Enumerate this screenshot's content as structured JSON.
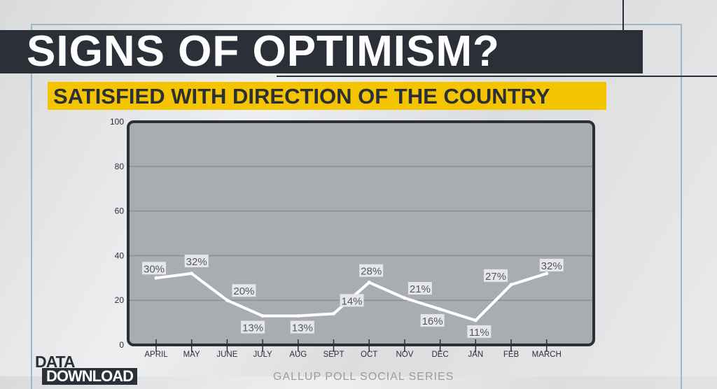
{
  "title": "SIGNS OF OPTIMISM?",
  "subtitle": "SATISFIED WITH DIRECTION OF THE COUNTRY",
  "logo": {
    "line1": "DATA_",
    "line2": "DOWNLOAD"
  },
  "source": "GALLUP POLL SOCIAL SERIES",
  "colors": {
    "title_bar": "#2b2f38",
    "subtitle_bar": "#f5c400",
    "line": "#ffffff",
    "plot_bg": "#a9acb1"
  },
  "chart_data": {
    "type": "line",
    "title": "SATISFIED WITH DIRECTION OF THE COUNTRY",
    "categories": [
      "APRIL",
      "MAY",
      "JUNE",
      "JULY",
      "AUG",
      "SEPT",
      "OCT",
      "NOV",
      "DEC",
      "JAN",
      "FEB",
      "MARCH"
    ],
    "values": [
      30,
      32,
      20,
      13,
      13,
      14,
      28,
      21,
      16,
      11,
      27,
      32
    ],
    "data_labels": [
      "30%",
      "32%",
      "20%",
      "13%",
      "13%",
      "14%",
      "28%",
      "21%",
      "16%",
      "11%",
      "27%",
      "32%"
    ],
    "ylim": [
      0,
      100
    ],
    "yticks": [
      "0",
      "20",
      "40",
      "60",
      "80",
      "100"
    ],
    "grid": true,
    "xlabel": "",
    "ylabel": ""
  }
}
